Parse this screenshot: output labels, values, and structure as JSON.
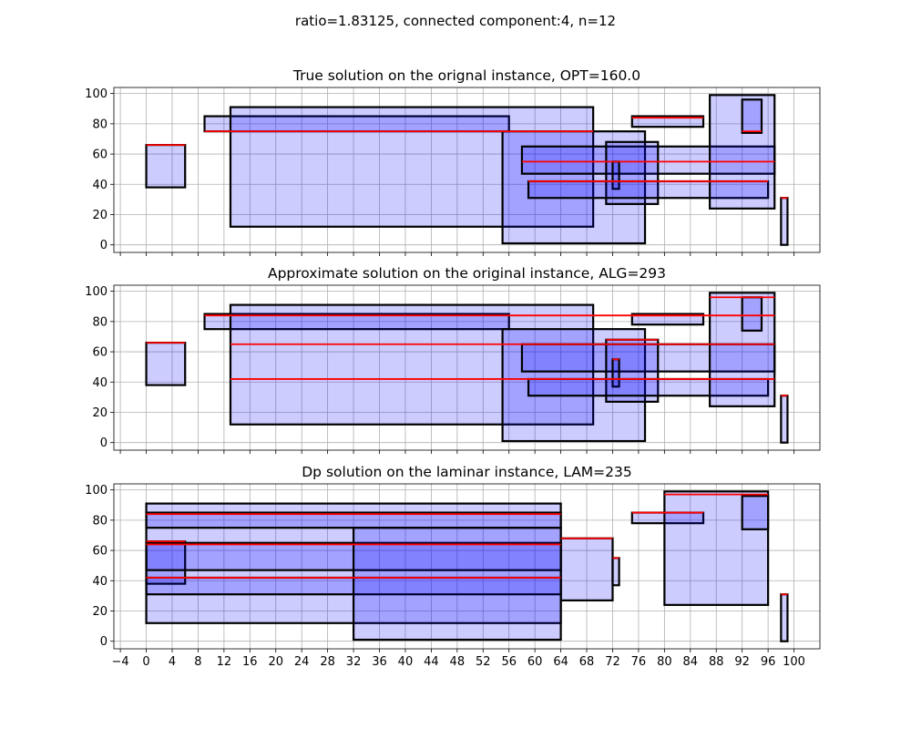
{
  "suptitle": "ratio=1.83125, connected component:4, n=12",
  "style": {
    "fill": "#0000ff",
    "fill_alpha": 0.2,
    "edge": "#000000",
    "line_color": "#ff0000",
    "grid_color": "#b0b0b0"
  },
  "chart_data": [
    {
      "type": "rectangles",
      "title": "True solution on the orignal instance, OPT=160.0",
      "xlim": [
        -5,
        104
      ],
      "ylim": [
        -5,
        104
      ],
      "xticks": [
        -4,
        0,
        4,
        8,
        12,
        16,
        20,
        24,
        28,
        32,
        36,
        40,
        44,
        48,
        52,
        56,
        60,
        64,
        68,
        72,
        76,
        80,
        84,
        88,
        92,
        96,
        100
      ],
      "yticks": [
        0,
        20,
        40,
        60,
        80,
        100
      ],
      "show_xtick_labels": false,
      "grid": true,
      "rects": [
        {
          "x": 0,
          "y": 38,
          "w": 6,
          "h": 28
        },
        {
          "x": 9,
          "y": 75,
          "w": 47,
          "h": 10
        },
        {
          "x": 13,
          "y": 12,
          "w": 56,
          "h": 79
        },
        {
          "x": 55,
          "y": 1,
          "w": 22,
          "h": 74
        },
        {
          "x": 58,
          "y": 47,
          "w": 39,
          "h": 18
        },
        {
          "x": 71,
          "y": 27,
          "w": 8,
          "h": 41
        },
        {
          "x": 72,
          "y": 37,
          "w": 1,
          "h": 18
        },
        {
          "x": 59,
          "y": 31,
          "w": 37,
          "h": 11
        },
        {
          "x": 75,
          "y": 78,
          "w": 11,
          "h": 7
        },
        {
          "x": 87,
          "y": 24,
          "w": 10,
          "h": 75
        },
        {
          "x": 92,
          "y": 74,
          "w": 3,
          "h": 22
        },
        {
          "x": 98,
          "y": 0,
          "w": 1,
          "h": 31
        }
      ],
      "lines": [
        {
          "x1": 0,
          "x2": 6,
          "y": 66
        },
        {
          "x1": 9,
          "x2": 69,
          "y": 75
        },
        {
          "x1": 58,
          "x2": 97,
          "y": 55
        },
        {
          "x1": 59,
          "x2": 96,
          "y": 42
        },
        {
          "x1": 75,
          "x2": 86,
          "y": 84
        },
        {
          "x1": 92,
          "x2": 95,
          "y": 75
        },
        {
          "x1": 98,
          "x2": 99,
          "y": 31
        }
      ]
    },
    {
      "type": "rectangles",
      "title": "Approximate solution on the original instance, ALG=293",
      "xlim": [
        -5,
        104
      ],
      "ylim": [
        -5,
        104
      ],
      "xticks": [
        -4,
        0,
        4,
        8,
        12,
        16,
        20,
        24,
        28,
        32,
        36,
        40,
        44,
        48,
        52,
        56,
        60,
        64,
        68,
        72,
        76,
        80,
        84,
        88,
        92,
        96,
        100
      ],
      "yticks": [
        0,
        20,
        40,
        60,
        80,
        100
      ],
      "show_xtick_labels": false,
      "grid": true,
      "rects": [
        {
          "x": 0,
          "y": 38,
          "w": 6,
          "h": 28
        },
        {
          "x": 9,
          "y": 75,
          "w": 47,
          "h": 10
        },
        {
          "x": 13,
          "y": 12,
          "w": 56,
          "h": 79
        },
        {
          "x": 55,
          "y": 1,
          "w": 22,
          "h": 74
        },
        {
          "x": 58,
          "y": 47,
          "w": 39,
          "h": 18
        },
        {
          "x": 71,
          "y": 27,
          "w": 8,
          "h": 41
        },
        {
          "x": 72,
          "y": 37,
          "w": 1,
          "h": 18
        },
        {
          "x": 59,
          "y": 31,
          "w": 37,
          "h": 11
        },
        {
          "x": 75,
          "y": 78,
          "w": 11,
          "h": 7
        },
        {
          "x": 87,
          "y": 24,
          "w": 10,
          "h": 75
        },
        {
          "x": 92,
          "y": 74,
          "w": 3,
          "h": 22
        },
        {
          "x": 98,
          "y": 0,
          "w": 1,
          "h": 31
        }
      ],
      "lines": [
        {
          "x1": 0,
          "x2": 6,
          "y": 66
        },
        {
          "x1": 9,
          "x2": 97,
          "y": 84
        },
        {
          "x1": 13,
          "x2": 97,
          "y": 65
        },
        {
          "x1": 13,
          "x2": 97,
          "y": 42
        },
        {
          "x1": 71,
          "x2": 79,
          "y": 68
        },
        {
          "x1": 72,
          "x2": 73,
          "y": 55
        },
        {
          "x1": 75,
          "x2": 86,
          "y": 84
        },
        {
          "x1": 87,
          "x2": 97,
          "y": 96
        },
        {
          "x1": 98,
          "x2": 99,
          "y": 31
        }
      ]
    },
    {
      "type": "rectangles",
      "title": "Dp solution on the laminar instance, LAM=235",
      "xlim": [
        -5,
        104
      ],
      "ylim": [
        -5,
        104
      ],
      "xticks": [
        -4,
        0,
        4,
        8,
        12,
        16,
        20,
        24,
        28,
        32,
        36,
        40,
        44,
        48,
        52,
        56,
        60,
        64,
        68,
        72,
        76,
        80,
        84,
        88,
        92,
        96,
        100
      ],
      "yticks": [
        0,
        20,
        40,
        60,
        80,
        100
      ],
      "show_xtick_labels": true,
      "grid": true,
      "rects": [
        {
          "x": 0,
          "y": 12,
          "w": 64,
          "h": 79
        },
        {
          "x": 0,
          "y": 75,
          "w": 64,
          "h": 10
        },
        {
          "x": 0,
          "y": 38,
          "w": 6,
          "h": 28
        },
        {
          "x": 0,
          "y": 47,
          "w": 64,
          "h": 18
        },
        {
          "x": 0,
          "y": 31,
          "w": 64,
          "h": 11
        },
        {
          "x": 32,
          "y": 1,
          "w": 32,
          "h": 74
        },
        {
          "x": 64,
          "y": 27,
          "w": 8,
          "h": 41
        },
        {
          "x": 72,
          "y": 37,
          "w": 1,
          "h": 18
        },
        {
          "x": 75,
          "y": 78,
          "w": 11,
          "h": 7
        },
        {
          "x": 80,
          "y": 24,
          "w": 16,
          "h": 75
        },
        {
          "x": 92,
          "y": 74,
          "w": 4,
          "h": 22
        },
        {
          "x": 98,
          "y": 0,
          "w": 1,
          "h": 31
        }
      ],
      "lines": [
        {
          "x1": 0,
          "x2": 64,
          "y": 84
        },
        {
          "x1": 0,
          "x2": 6,
          "y": 66
        },
        {
          "x1": 0,
          "x2": 64,
          "y": 64
        },
        {
          "x1": 0,
          "x2": 64,
          "y": 42
        },
        {
          "x1": 64,
          "x2": 72,
          "y": 68
        },
        {
          "x1": 72,
          "x2": 73,
          "y": 55
        },
        {
          "x1": 75,
          "x2": 86,
          "y": 85
        },
        {
          "x1": 80,
          "x2": 96,
          "y": 97
        },
        {
          "x1": 98,
          "x2": 99,
          "y": 31
        }
      ]
    }
  ]
}
